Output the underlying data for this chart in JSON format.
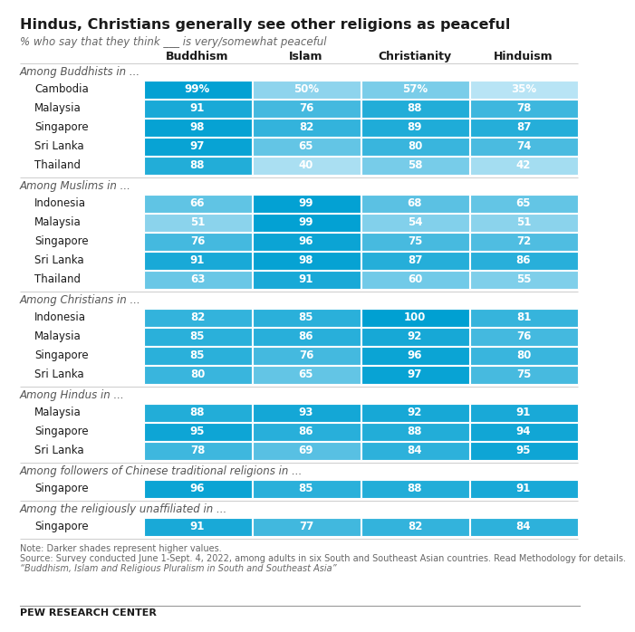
{
  "title": "Hindus, Christians generally see other religions as peaceful",
  "subtitle": "% who say that they think ___ is very/somewhat peaceful",
  "col_headers": [
    "Buddhism",
    "Islam",
    "Christianity",
    "Hinduism"
  ],
  "sections": [
    {
      "header": "Among Buddhists in ...",
      "rows": [
        {
          "label": "Cambodia",
          "values": [
            99,
            50,
            57,
            35
          ],
          "show_pct": true
        },
        {
          "label": "Malaysia",
          "values": [
            91,
            76,
            88,
            78
          ],
          "show_pct": false
        },
        {
          "label": "Singapore",
          "values": [
            98,
            82,
            89,
            87
          ],
          "show_pct": false
        },
        {
          "label": "Sri Lanka",
          "values": [
            97,
            65,
            80,
            74
          ],
          "show_pct": false
        },
        {
          "label": "Thailand",
          "values": [
            88,
            40,
            58,
            42
          ],
          "show_pct": false
        }
      ]
    },
    {
      "header": "Among Muslims in ...",
      "rows": [
        {
          "label": "Indonesia",
          "values": [
            66,
            99,
            68,
            65
          ],
          "show_pct": false
        },
        {
          "label": "Malaysia",
          "values": [
            51,
            99,
            54,
            51
          ],
          "show_pct": false
        },
        {
          "label": "Singapore",
          "values": [
            76,
            96,
            75,
            72
          ],
          "show_pct": false
        },
        {
          "label": "Sri Lanka",
          "values": [
            91,
            98,
            87,
            86
          ],
          "show_pct": false
        },
        {
          "label": "Thailand",
          "values": [
            63,
            91,
            60,
            55
          ],
          "show_pct": false
        }
      ]
    },
    {
      "header": "Among Christians in ...",
      "rows": [
        {
          "label": "Indonesia",
          "values": [
            82,
            85,
            100,
            81
          ],
          "show_pct": false
        },
        {
          "label": "Malaysia",
          "values": [
            85,
            86,
            92,
            76
          ],
          "show_pct": false
        },
        {
          "label": "Singapore",
          "values": [
            85,
            76,
            96,
            80
          ],
          "show_pct": false
        },
        {
          "label": "Sri Lanka",
          "values": [
            80,
            65,
            97,
            75
          ],
          "show_pct": false
        }
      ]
    },
    {
      "header": "Among Hindus in ...",
      "rows": [
        {
          "label": "Malaysia",
          "values": [
            88,
            93,
            92,
            91
          ],
          "show_pct": false
        },
        {
          "label": "Singapore",
          "values": [
            95,
            86,
            88,
            94
          ],
          "show_pct": false
        },
        {
          "label": "Sri Lanka",
          "values": [
            78,
            69,
            84,
            95
          ],
          "show_pct": false
        }
      ]
    },
    {
      "header": "Among followers of Chinese traditional religions in ...",
      "rows": [
        {
          "label": "Singapore",
          "values": [
            96,
            85,
            88,
            91
          ],
          "show_pct": false
        }
      ]
    },
    {
      "header": "Among the religiously unaffiliated in ...",
      "rows": [
        {
          "label": "Singapore",
          "values": [
            91,
            77,
            82,
            84
          ],
          "show_pct": false
        }
      ]
    }
  ],
  "background": "#FFFFFF",
  "cell_color_light": [
    184,
    228,
    245
  ],
  "cell_color_dark": [
    0,
    160,
    210
  ],
  "val_min": 35,
  "val_max": 100,
  "note": "Note: Darker shades represent higher values.",
  "source": "Source: Survey conducted June 1-Sept. 4, 2022, among adults in six South and Southeast Asian countries. Read Methodology for details.",
  "source2": "“Buddhism, Islam and Religious Pluralism in South and Southeast Asia”",
  "footer": "PEW RESEARCH CENTER",
  "title_fontsize": 11.5,
  "subtitle_fontsize": 8.5,
  "header_fontsize": 8.5,
  "cell_fontsize": 8.5,
  "label_fontsize": 8.5,
  "colheader_fontsize": 9,
  "note_fontsize": 7,
  "footer_fontsize": 8
}
